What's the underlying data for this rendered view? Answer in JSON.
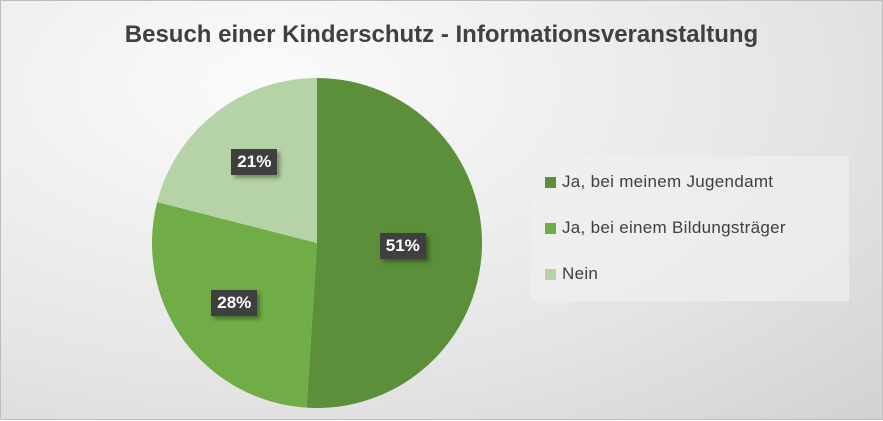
{
  "chart_data": {
    "type": "pie",
    "title": "Besuch einer Kinderschutz - Informationsveranstaltung",
    "categories": [
      "Ja, bei meinem Jugendamt",
      "Ja, bei einem Bildungsträger",
      "Nein"
    ],
    "values": [
      51,
      28,
      21
    ],
    "data_labels": [
      "51%",
      "28%",
      "21%"
    ],
    "colors": [
      "#5b8f3a",
      "#70ad47",
      "#b6d3a7"
    ],
    "legend_position": "right"
  }
}
